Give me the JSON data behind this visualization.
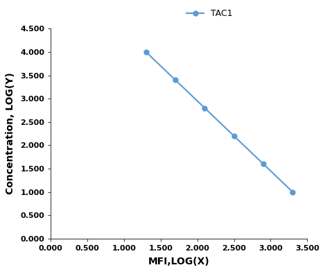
{
  "x": [
    1.3,
    1.7,
    2.1,
    2.5,
    2.9,
    3.3
  ],
  "y": [
    4.0,
    3.4,
    2.8,
    2.2,
    1.6,
    1.0
  ],
  "line_color": "#5B9BD5",
  "marker": "o",
  "marker_size": 5,
  "line_width": 1.5,
  "legend_label": "TAC1",
  "xlabel": "MFI,LOG(X)",
  "ylabel": "Concentration, LOG(Y)",
  "xlim": [
    0.0,
    3.5
  ],
  "ylim": [
    0.0,
    4.5
  ],
  "xticks": [
    0.0,
    0.5,
    1.0,
    1.5,
    2.0,
    2.5,
    3.0,
    3.5
  ],
  "yticks": [
    0.0,
    0.5,
    1.0,
    1.5,
    2.0,
    2.5,
    3.0,
    3.5,
    4.0,
    4.5
  ],
  "axis_label_fontsize": 10,
  "tick_fontsize": 8,
  "legend_fontsize": 9,
  "background_color": "#ffffff",
  "spine_color": "#404040"
}
